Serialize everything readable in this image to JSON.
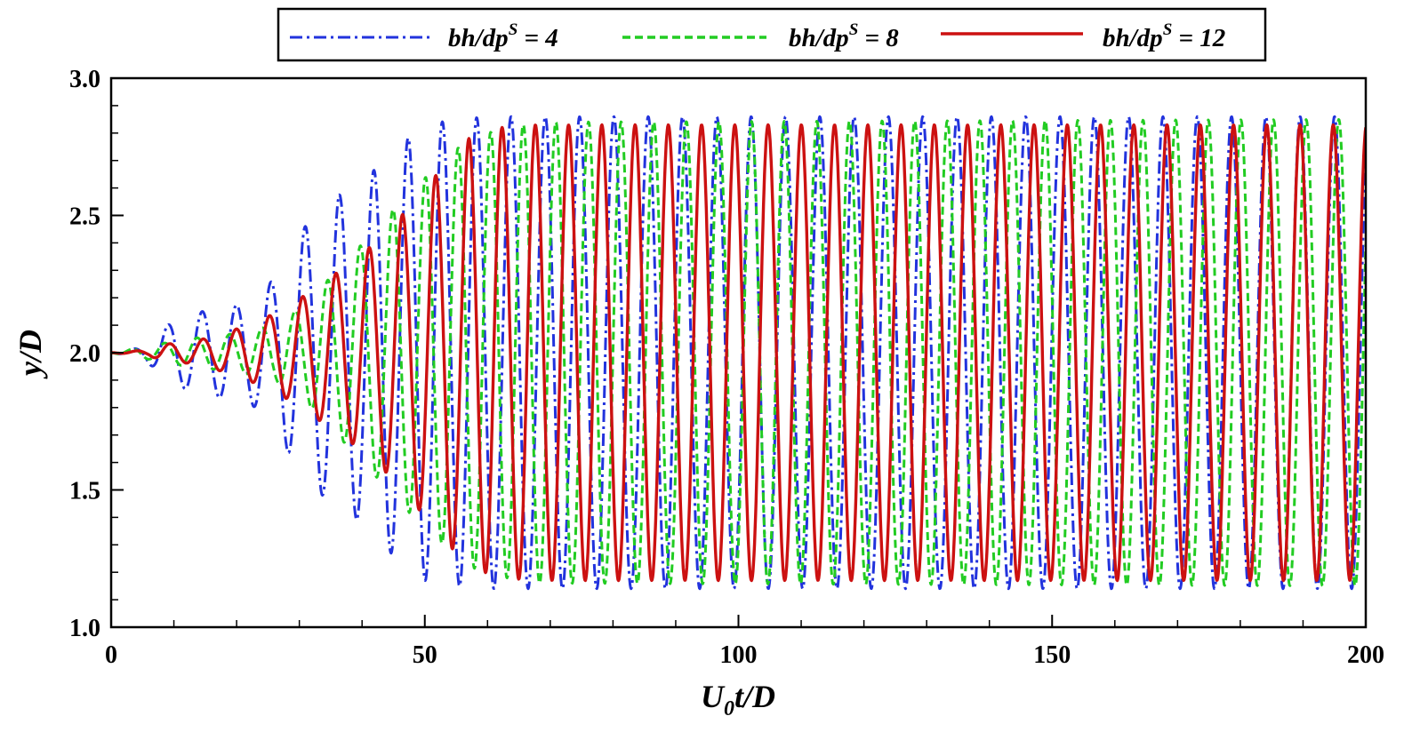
{
  "chart_data": {
    "type": "line",
    "title": "",
    "xlabel": {
      "main": "U",
      "sub": "0",
      "rest": "t/D"
    },
    "ylabel": "y/D",
    "xlim": [
      0,
      200
    ],
    "ylim": [
      1.0,
      3.0
    ],
    "xticks": [
      0,
      50,
      100,
      150,
      200
    ],
    "xtick_labels": [
      "0",
      "50",
      "100",
      "150",
      "200"
    ],
    "x_minor_step": 10,
    "yticks": [
      1.0,
      1.5,
      2.0,
      2.5,
      3.0
    ],
    "ytick_labels": [
      "1.0",
      "1.5",
      "2.0",
      "2.5",
      "3.0"
    ],
    "y_minor_step": 0.1,
    "grid": false,
    "legend_position": "top",
    "series": [
      {
        "name": "bh/dp",
        "name_sup": "S",
        "name_suffix": " = 4",
        "color": "#2233dd",
        "dash": "dash-dot",
        "y0": 2.0,
        "period": 5.47,
        "phase_t": 2.2,
        "offset": 0.0,
        "envelope": [
          [
            0,
            0.0
          ],
          [
            5,
            0.02
          ],
          [
            10,
            0.12
          ],
          [
            16,
            0.16
          ],
          [
            22,
            0.18
          ],
          [
            26,
            0.27
          ],
          [
            30,
            0.44
          ],
          [
            36,
            0.57
          ],
          [
            40,
            0.62
          ],
          [
            45,
            0.74
          ],
          [
            50,
            0.83
          ],
          [
            55,
            0.85
          ],
          [
            60,
            0.86
          ],
          [
            200,
            0.86
          ]
        ],
        "peaks": [
          [
            10.9,
            2.14
          ],
          [
            16.4,
            2.16
          ],
          [
            21.8,
            2.19
          ],
          [
            27.4,
            2.31
          ],
          [
            32.7,
            2.46
          ],
          [
            38.3,
            2.58
          ],
          [
            44.0,
            2.72
          ],
          [
            49.1,
            2.81
          ],
          [
            55.0,
            2.83
          ],
          [
            60.5,
            2.86
          ],
          [
            66.1,
            2.85
          ],
          [
            71.8,
            2.86
          ],
          [
            77.2,
            2.85
          ],
          [
            82.6,
            2.86
          ],
          [
            88.0,
            2.86
          ],
          [
            131.5,
            2.88
          ],
          [
            143.0,
            2.87
          ],
          [
            194.0,
            2.88
          ]
        ],
        "troughs": [
          [
            13.7,
            1.9
          ],
          [
            19.2,
            1.84
          ],
          [
            25.3,
            1.75
          ],
          [
            31.2,
            1.63
          ],
          [
            36.9,
            1.49
          ],
          [
            42.4,
            1.35
          ],
          [
            48.1,
            1.25
          ],
          [
            53.5,
            1.16
          ],
          [
            59.0,
            1.16
          ],
          [
            64.6,
            1.16
          ],
          [
            70.1,
            1.16
          ],
          [
            75.5,
            1.16
          ],
          [
            81.0,
            1.16
          ],
          [
            86.5,
            1.16
          ],
          [
            192.0,
            1.13
          ]
        ]
      },
      {
        "name": "bh/dp",
        "name_sup": "S",
        "name_suffix": " = 8",
        "color": "#22cc22",
        "dash": "dashed",
        "y0": 2.0,
        "period": 5.2,
        "phase_t": 2.0,
        "offset": 0.0,
        "envelope": [
          [
            0,
            0.0
          ],
          [
            5,
            0.02
          ],
          [
            12,
            0.05
          ],
          [
            20,
            0.07
          ],
          [
            26,
            0.1
          ],
          [
            31,
            0.18
          ],
          [
            36,
            0.3
          ],
          [
            41,
            0.42
          ],
          [
            46,
            0.55
          ],
          [
            52,
            0.68
          ],
          [
            57,
            0.78
          ],
          [
            63,
            0.82
          ],
          [
            68,
            0.84
          ],
          [
            200,
            0.85
          ]
        ],
        "peaks": [
          [
            57.8,
            2.75
          ],
          [
            63.4,
            2.78
          ],
          [
            68.7,
            2.8
          ],
          [
            74.0,
            2.82
          ],
          [
            79.2,
            2.84
          ],
          [
            84.5,
            2.85
          ],
          [
            90.0,
            2.85
          ],
          [
            200.0,
            2.85
          ]
        ],
        "troughs": [
          [
            60.6,
            1.2
          ],
          [
            66.0,
            1.17
          ],
          [
            71.3,
            1.16
          ],
          [
            76.6,
            1.16
          ],
          [
            200.0,
            1.16
          ]
        ]
      },
      {
        "name": "bh/dp",
        "name_sup": "S",
        "name_suffix": " = 12",
        "color": "#cc1111",
        "dash": "solid",
        "y0": 2.0,
        "period": 5.3,
        "phase_t": 8.0,
        "offset": 0.0,
        "envelope": [
          [
            0,
            0.0
          ],
          [
            6,
            0.01
          ],
          [
            8,
            0.03
          ],
          [
            13,
            0.04
          ],
          [
            18,
            0.07
          ],
          [
            24,
            0.12
          ],
          [
            29,
            0.18
          ],
          [
            34,
            0.26
          ],
          [
            39,
            0.34
          ],
          [
            44,
            0.44
          ],
          [
            49,
            0.57
          ],
          [
            53,
            0.68
          ],
          [
            57,
            0.78
          ],
          [
            62,
            0.82
          ],
          [
            68,
            0.83
          ],
          [
            200,
            0.83
          ]
        ],
        "peaks": [
          [
            9.6,
            2.04
          ],
          [
            14.6,
            2.06
          ],
          [
            19.8,
            2.09
          ],
          [
            25.0,
            2.12
          ],
          [
            30.6,
            2.17
          ],
          [
            36.0,
            2.25
          ],
          [
            41.6,
            2.35
          ],
          [
            47.0,
            2.49
          ],
          [
            52.3,
            2.63
          ],
          [
            57.6,
            2.73
          ],
          [
            62.9,
            2.79
          ],
          [
            68.2,
            2.81
          ],
          [
            73.5,
            2.82
          ],
          [
            200.0,
            2.83
          ]
        ],
        "troughs": [
          [
            11.4,
            1.97
          ],
          [
            17.0,
            1.96
          ],
          [
            22.6,
            1.94
          ],
          [
            28.0,
            1.89
          ],
          [
            33.2,
            1.84
          ],
          [
            38.6,
            1.74
          ],
          [
            44.0,
            1.6
          ],
          [
            49.6,
            1.45
          ],
          [
            55.0,
            1.31
          ],
          [
            60.3,
            1.26
          ],
          [
            65.7,
            1.21
          ],
          [
            71.0,
            1.19
          ],
          [
            200.0,
            1.18
          ]
        ]
      }
    ]
  }
}
